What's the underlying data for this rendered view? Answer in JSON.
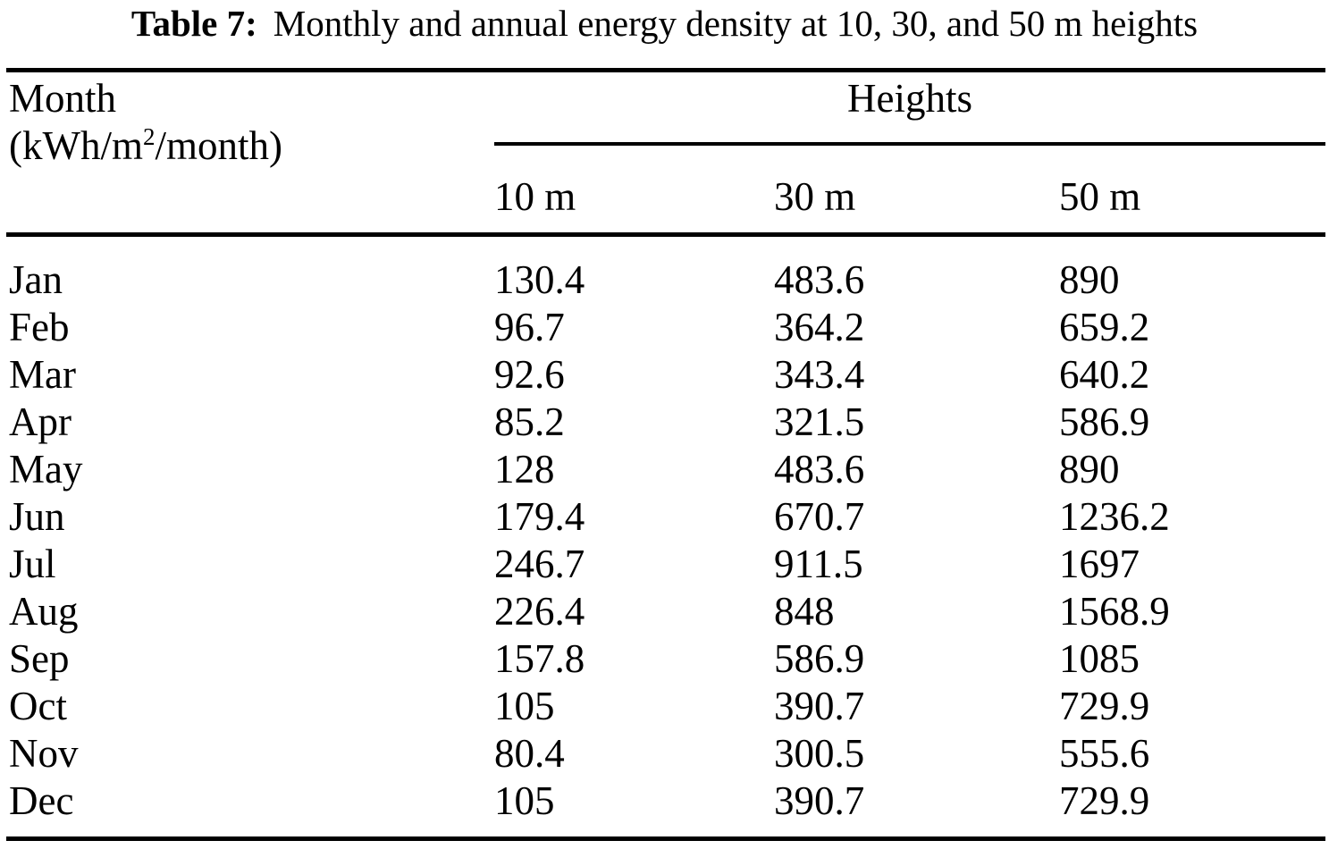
{
  "title": {
    "prefix": "Table 7:",
    "text": "Monthly and annual energy density at 10, 30, and 50 m heights"
  },
  "table": {
    "row_header": {
      "line1": "Month",
      "unit_prefix": "(kWh/m",
      "unit_sup": "2",
      "unit_suffix": "/month)"
    },
    "group_header": "Heights",
    "columns": [
      "10 m",
      "30 m",
      "50 m"
    ],
    "rows": [
      {
        "month": "Jan",
        "values": [
          "130.4",
          "483.6",
          "890"
        ]
      },
      {
        "month": "Feb",
        "values": [
          "96.7",
          "364.2",
          "659.2"
        ]
      },
      {
        "month": "Mar",
        "values": [
          "92.6",
          "343.4",
          "640.2"
        ]
      },
      {
        "month": "Apr",
        "values": [
          "85.2",
          "321.5",
          "586.9"
        ]
      },
      {
        "month": "May",
        "values": [
          "128",
          "483.6",
          "890"
        ]
      },
      {
        "month": "Jun",
        "values": [
          "179.4",
          "670.7",
          "1236.2"
        ]
      },
      {
        "month": "Jul",
        "values": [
          "246.7",
          "911.5",
          "1697"
        ]
      },
      {
        "month": "Aug",
        "values": [
          "226.4",
          "848",
          "1568.9"
        ]
      },
      {
        "month": "Sep",
        "values": [
          "157.8",
          "586.9",
          "1085"
        ]
      },
      {
        "month": "Oct",
        "values": [
          "105",
          "390.7",
          "729.9"
        ]
      },
      {
        "month": "Nov",
        "values": [
          "80.4",
          "300.5",
          "555.6"
        ]
      },
      {
        "month": "Dec",
        "values": [
          "105",
          "390.7",
          "729.9"
        ]
      }
    ]
  },
  "colors": {
    "text": "#000000",
    "background": "#ffffff",
    "rule": "#000000"
  },
  "chart_data": {
    "type": "table",
    "title": "Table 7: Monthly and annual energy density at 10, 30, and 50 m heights",
    "unit": "kWh/m²/month",
    "categories": [
      "Jan",
      "Feb",
      "Mar",
      "Apr",
      "May",
      "Jun",
      "Jul",
      "Aug",
      "Sep",
      "Oct",
      "Nov",
      "Dec"
    ],
    "series": [
      {
        "name": "10 m",
        "values": [
          130.4,
          96.7,
          92.6,
          85.2,
          128,
          179.4,
          246.7,
          226.4,
          157.8,
          105,
          80.4,
          105
        ]
      },
      {
        "name": "30 m",
        "values": [
          483.6,
          364.2,
          343.4,
          321.5,
          483.6,
          670.7,
          911.5,
          848,
          586.9,
          390.7,
          300.5,
          390.7
        ]
      },
      {
        "name": "50 m",
        "values": [
          890,
          659.2,
          640.2,
          586.9,
          890,
          1236.2,
          1697,
          1568.9,
          1085,
          729.9,
          555.6,
          729.9
        ]
      }
    ]
  }
}
